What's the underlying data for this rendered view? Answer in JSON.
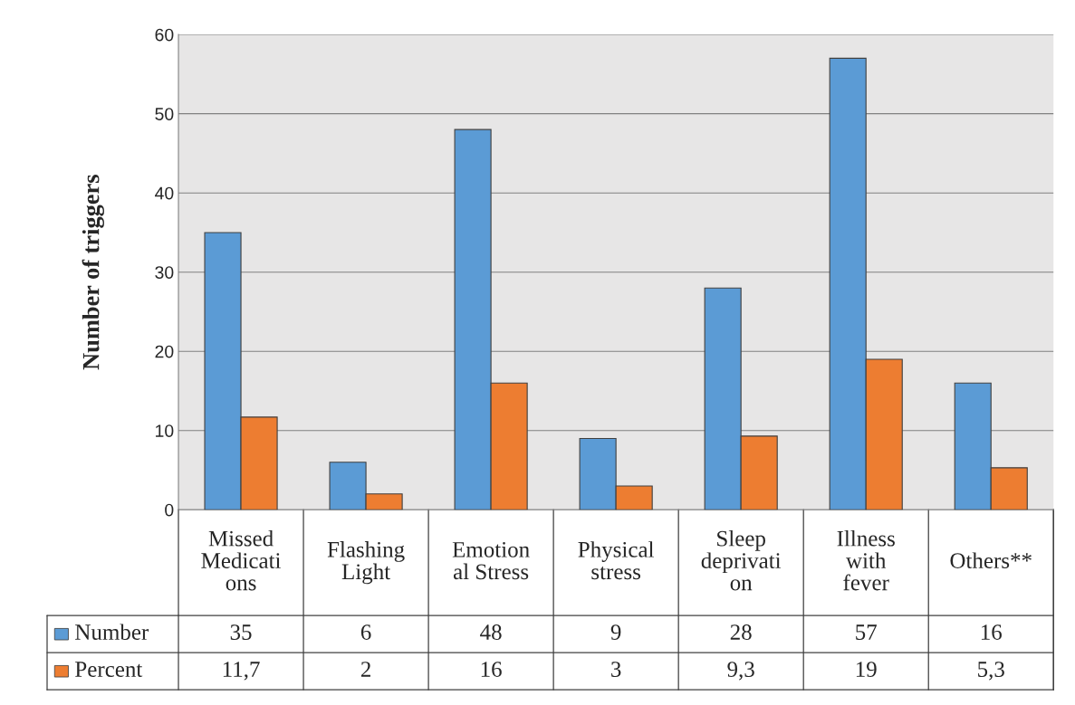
{
  "chart_data": {
    "type": "bar",
    "ylabel": "Number of triggers",
    "categories": [
      "Missed\nMedicati\nons",
      "Flashing\nLight",
      "Emotion\nal Stress",
      "Physical\nstress",
      "Sleep\ndeprivati\non",
      "Illness\nwith\nfever",
      "Others**"
    ],
    "series": [
      {
        "name": "Number",
        "color": "#5b9bd5",
        "values": [
          35,
          6,
          48,
          9,
          28,
          57,
          16
        ],
        "value_labels": [
          "35",
          "6",
          "48",
          "9",
          "28",
          "57",
          "16"
        ]
      },
      {
        "name": "Percent",
        "color": "#ed7d31",
        "values": [
          11.7,
          2,
          16,
          3,
          9.3,
          19,
          5.3
        ],
        "value_labels": [
          "11,7",
          "2",
          "16",
          "3",
          "9,3",
          "19",
          "5,3"
        ]
      }
    ],
    "ylim": [
      0,
      60
    ],
    "yticks": [
      0,
      10,
      20,
      30,
      40,
      50,
      60
    ],
    "grid": "y",
    "legend": "bottom"
  }
}
